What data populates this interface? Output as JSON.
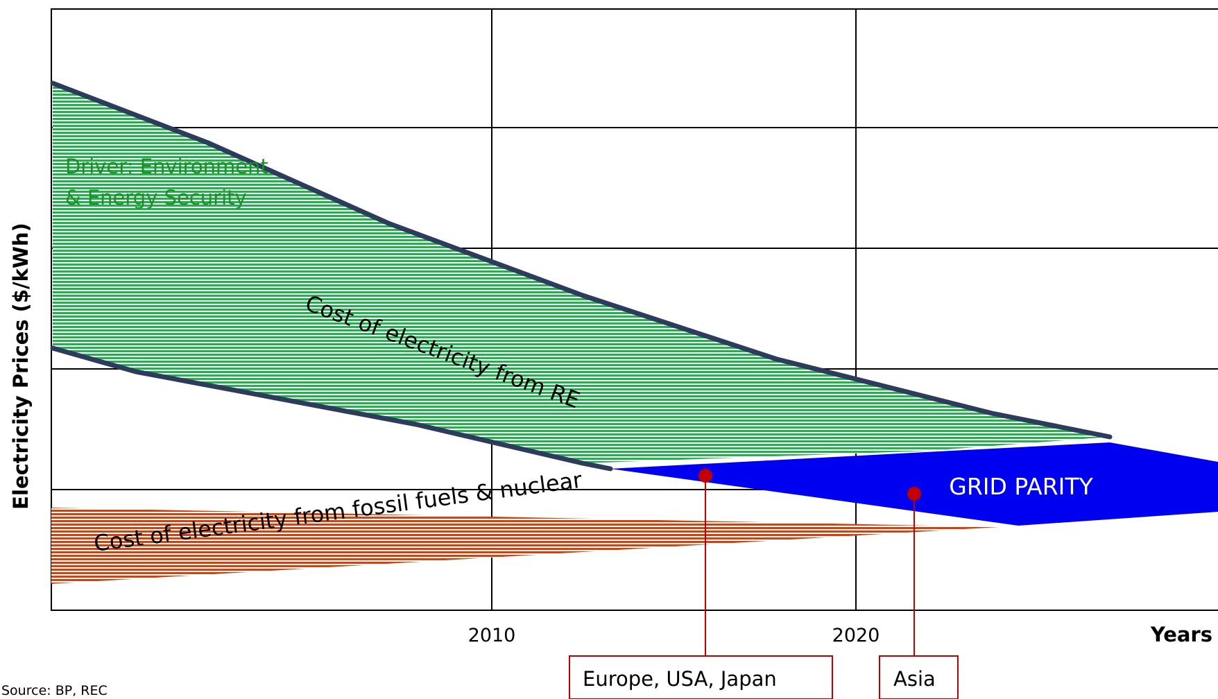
{
  "chart_data": {
    "type": "area",
    "xlabel": "Years",
    "ylabel": "Electricity Prices ($/kWh)",
    "x_ticks": [
      "2010",
      "2020"
    ],
    "grid": true,
    "source": "Source: BP, REC",
    "colors": {
      "re_band": "#22b24c",
      "fossil_band": "#d2420f",
      "grid_parity": "#0000f0",
      "boundary_line": "#2d3b5c",
      "callout": "#c00000"
    },
    "series": [
      {
        "label": "Cost of electricity from RE"
      },
      {
        "label": "Cost of electricity from fossil fuels & nuclear"
      },
      {
        "label": "GRID PARITY"
      }
    ],
    "annotations": {
      "driver_line1": "Driver: Environment",
      "driver_line2": "& Energy Security",
      "callouts": [
        "Europe, USA, Japan",
        "Asia"
      ]
    }
  }
}
